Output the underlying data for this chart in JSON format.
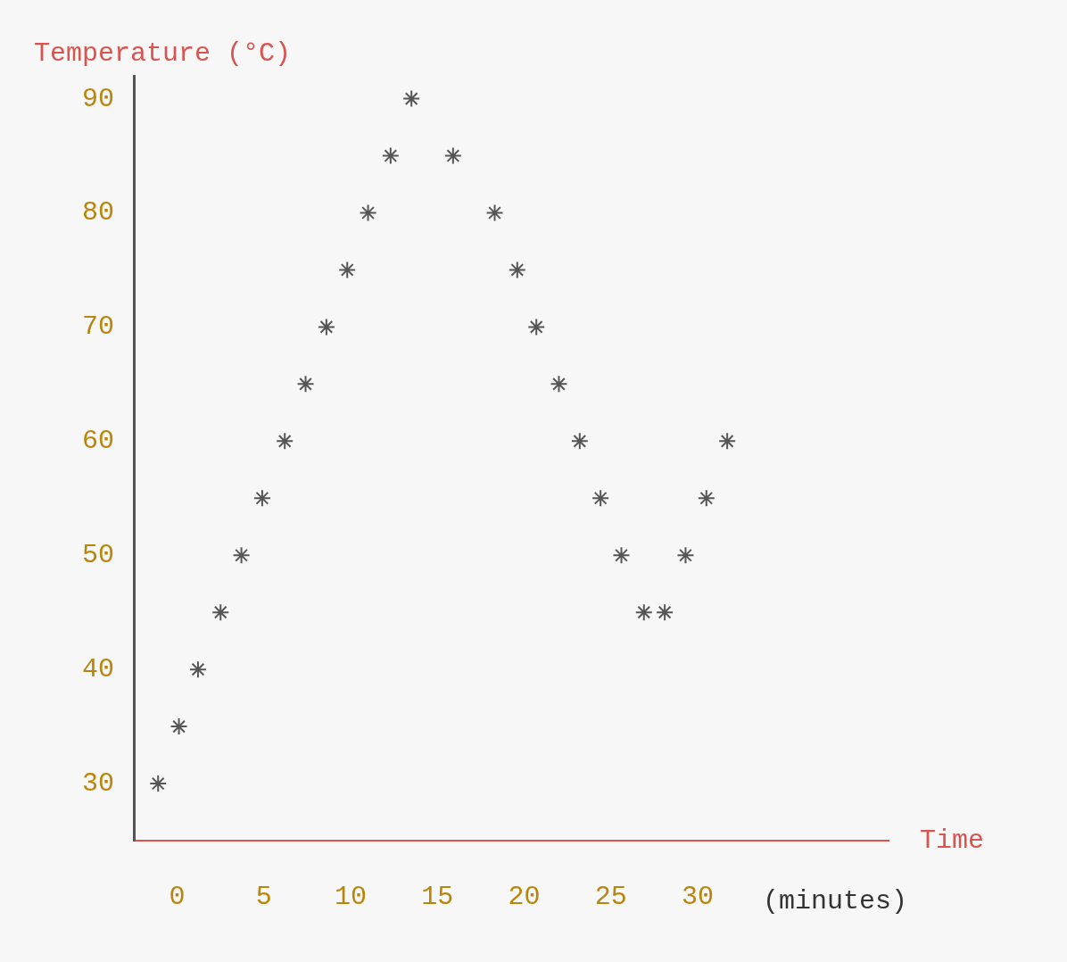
{
  "chart_data": {
    "type": "scatter",
    "xlabel": "Time",
    "ylabel": "Temperature (°C)",
    "annotations": [
      "(minutes)"
    ],
    "marker": "cross",
    "grid": false,
    "xlim": [
      -2.5,
      41
    ],
    "xticks": [
      0,
      5,
      10,
      15,
      20,
      25,
      30
    ],
    "ylim": [
      25,
      92
    ],
    "yticks": [
      30,
      40,
      50,
      60,
      70,
      80,
      90
    ],
    "series": [
      {
        "color": "#555555",
        "x": [
          -1.1,
          0.1,
          1.2,
          2.5,
          3.7,
          4.9,
          6.2,
          7.4,
          8.6,
          9.8,
          11.0,
          12.3,
          13.5,
          15.9,
          18.3,
          19.6,
          20.7,
          22.0,
          23.2,
          24.4,
          25.6,
          26.9,
          28.1,
          29.3,
          30.5,
          31.7
        ],
        "values": [
          30,
          35,
          40,
          45,
          50,
          55,
          60,
          65,
          70,
          75,
          80,
          85,
          90,
          85,
          80,
          75,
          70,
          65,
          60,
          55,
          50,
          45,
          45,
          50,
          55,
          60
        ]
      }
    ]
  }
}
